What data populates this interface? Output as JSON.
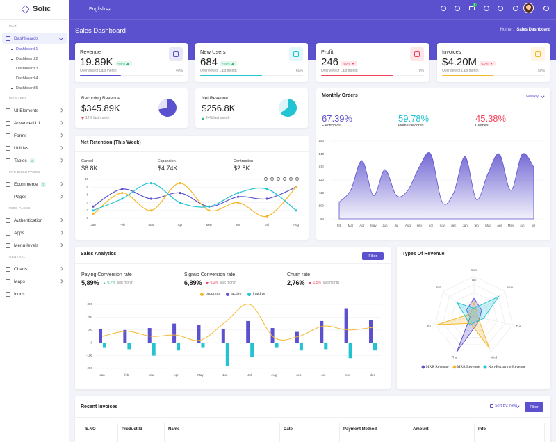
{
  "sidebar": {
    "brand": "Solic",
    "sections": [
      {
        "title": "MAIN",
        "items": [
          {
            "label": "Dashboards",
            "active": true,
            "submenu": true,
            "children": [
              {
                "label": "Dashboard 1",
                "active": true
              },
              {
                "label": "Dashboard 2"
              },
              {
                "label": "Dashboard 3"
              },
              {
                "label": "Dashboard 4"
              },
              {
                "label": "Dashboard 5"
              }
            ]
          }
        ]
      },
      {
        "title": "WEB APPS",
        "items": [
          {
            "label": "UI Elements",
            "submenu": true
          },
          {
            "label": "Advanced UI",
            "submenu": true
          },
          {
            "label": "Forms",
            "submenu": true
          },
          {
            "label": "Utilities",
            "submenu": true
          },
          {
            "label": "Tables",
            "badge": "3",
            "submenu": true
          }
        ]
      },
      {
        "title": "PRE BUILD PAGES",
        "items": [
          {
            "label": "Ecommerce",
            "badge": "3",
            "submenu": true
          },
          {
            "label": "Pages",
            "submenu": true
          }
        ]
      },
      {
        "title": "MISC PAGES",
        "items": [
          {
            "label": "Authentication",
            "submenu": true
          },
          {
            "label": "Apps",
            "submenu": true
          },
          {
            "label": "Menu-levels",
            "submenu": true
          }
        ]
      },
      {
        "title": "GENERAL",
        "items": [
          {
            "label": "Charts",
            "submenu": true
          },
          {
            "label": "Maps",
            "submenu": true
          },
          {
            "label": "Icons"
          }
        ]
      }
    ]
  },
  "header": {
    "language": "English",
    "cart_count": "5"
  },
  "page": {
    "title": "Sales Dashboard",
    "breadcrumb": [
      "Home",
      "Sales Dashboard"
    ],
    "breadcrumb_separator": "/"
  },
  "stats": [
    {
      "title": "Revenue",
      "value": "19.89K",
      "change": "+66%",
      "trend": "up",
      "note": "Overview of Last month",
      "progress": {
        "value": 40,
        "label": "40%"
      },
      "color": "#5b50cd"
    },
    {
      "title": "New Users",
      "value": "684",
      "change": "+25%",
      "trend": "up",
      "note": "Overview of Last month",
      "progress": {
        "value": 60,
        "label": "60%"
      },
      "color": "#22c4d3"
    },
    {
      "title": "Profit",
      "value": "246",
      "change": "-50%",
      "trend": "down",
      "note": "Overview of Last month",
      "progress": {
        "value": 70,
        "label": "70%"
      },
      "color": "#f0445d"
    },
    {
      "title": "Invoices",
      "value": "$4.20M",
      "change": "-10%",
      "trend": "down",
      "note": "Overview of Last month",
      "progress": {
        "value": 50,
        "label": "50%"
      },
      "color": "#f5b72a"
    }
  ],
  "mini_cards": [
    {
      "title": "Recurring Revenue",
      "value": "$345.89K",
      "change": "12% last month",
      "trend": "down"
    },
    {
      "title": "Net Revenue",
      "value": "$256.8K",
      "change": "24% last month",
      "trend": "up"
    }
  ],
  "monthly_orders": {
    "period": "Weekly",
    "stats": [
      {
        "value": "67.39%",
        "label": "Electronics",
        "color": "#5b50cd"
      },
      {
        "value": "59.78%",
        "label": "Home Decores",
        "color": "#22c4d3"
      },
      {
        "value": "45.38%",
        "label": "Clothes",
        "color": "#f0445d"
      }
    ]
  },
  "net_retention": {
    "stats": [
      {
        "label": "Cancel",
        "value": "$6.8K"
      },
      {
        "label": "Expansion",
        "value": "$4.74K"
      },
      {
        "label": "Contraction",
        "value": "$2.8K"
      }
    ]
  },
  "sales_analytics": {
    "filter": "Filter",
    "stats": [
      {
        "label": "Paying Conversion rate",
        "value": "5,89%",
        "change": "0.7%",
        "trend": "up",
        "note": "last month"
      },
      {
        "label": "Signup Conversion rate",
        "value": "6,89%",
        "change": "0.2%",
        "trend": "down",
        "note": "last month"
      },
      {
        "label": "Churn rate",
        "value": "2,76%",
        "change": "1.5%",
        "trend": "down",
        "note": "last month"
      }
    ]
  },
  "invoices": {
    "title": "Recent Invoices",
    "sort": "Sort By: New",
    "filter": "Filter",
    "columns": [
      "S.NO",
      "Product Id",
      "Name",
      "Date",
      "Payment Method",
      "Amount",
      "Info"
    ]
  },
  "chart_data": [
    {
      "type": "line",
      "title": "Net Retention (This Week)",
      "categories": [
        "Jan",
        "Feb",
        "Mar",
        "Apr",
        "May",
        "Jun",
        "Jul",
        "Aug"
      ],
      "series": [
        {
          "color": "#5b50cd",
          "values": [
            3,
            7.5,
            5,
            6.5,
            3,
            5.5,
            5,
            8
          ]
        },
        {
          "color": "#f5b72a",
          "values": [
            1,
            6.5,
            2,
            9,
            2,
            4,
            0.5,
            8
          ]
        },
        {
          "color": "#22c4d3",
          "values": [
            2,
            5,
            9,
            4,
            3,
            6.5,
            7.5,
            2
          ]
        }
      ],
      "ylim": [
        0,
        10
      ],
      "yticks": [
        0,
        2,
        4,
        6,
        8,
        10
      ],
      "grid": true
    },
    {
      "type": "area",
      "title": "Monthly Orders",
      "categories": [
        "feb",
        "Mar",
        "Apr",
        "May",
        "Jun",
        "Jul",
        "Aug",
        "sep",
        "oct",
        "nov",
        "dec",
        "Jan",
        "feb",
        "Mar",
        "Apr",
        "May",
        "jun",
        "jul"
      ],
      "values": [
        103,
        112,
        135,
        108,
        128,
        108,
        112,
        130,
        140,
        103,
        110,
        138,
        105,
        125,
        140,
        112,
        140,
        130
      ],
      "color": "#5b50cd",
      "ylim": [
        90,
        150
      ],
      "yticks": [
        90,
        100,
        110,
        120,
        130,
        140,
        150
      ],
      "grid": true
    },
    {
      "type": "combo",
      "title": "Sales Analytics",
      "categories": [
        "Jan",
        "feb",
        "Mar",
        "Apr",
        "May",
        "Jun",
        "Jul",
        "Aug",
        "sep",
        "oct",
        "nov",
        "dec"
      ],
      "series": [
        {
          "name": "progress",
          "type": "line",
          "color": "#f5b72a",
          "values": [
            50,
            90,
            50,
            60,
            20,
            160,
            300,
            40,
            50,
            130,
            100,
            120
          ]
        },
        {
          "name": "active",
          "type": "bar",
          "color": "#5b50cd",
          "values": [
            110,
            100,
            115,
            150,
            140,
            110,
            170,
            115,
            85,
            170,
            270,
            180
          ]
        },
        {
          "name": "inactive",
          "type": "bar",
          "color": "#22c4d3",
          "values": [
            -40,
            -50,
            -100,
            -60,
            -40,
            -180,
            -110,
            -40,
            -60,
            -50,
            -120,
            -60
          ]
        }
      ],
      "ylim": [
        -200,
        300
      ],
      "yticks": [
        -200,
        -100,
        0,
        100,
        200,
        300
      ],
      "grid": true
    },
    {
      "type": "radar",
      "title": "Types Of Revenue",
      "categories": [
        "Sun",
        "Mon",
        "Tue",
        "Wed",
        "Thu",
        "Fri",
        "Sat"
      ],
      "series": [
        {
          "name": "MRR Revenue",
          "color": "#5b50cd",
          "values": [
            45,
            25,
            15,
            20,
            100,
            10,
            25
          ]
        },
        {
          "name": "MRR Revenue",
          "color": "#f5b72a",
          "values": [
            35,
            10,
            10,
            90,
            20,
            95,
            10
          ]
        },
        {
          "name": "Non-Recurring Revenue",
          "color": "#22c4d3",
          "values": [
            20,
            80,
            25,
            15,
            25,
            20,
            55
          ]
        }
      ],
      "rlim": [
        0,
        100
      ],
      "rticks": [
        100
      ]
    },
    {
      "type": "pie",
      "values": [
        72,
        28
      ],
      "colors": [
        "#5b50cd",
        "#e4e2f6"
      ]
    },
    {
      "type": "pie",
      "values": [
        65,
        35
      ],
      "colors": [
        "#22c4d3",
        "#dcf5f8"
      ]
    }
  ]
}
